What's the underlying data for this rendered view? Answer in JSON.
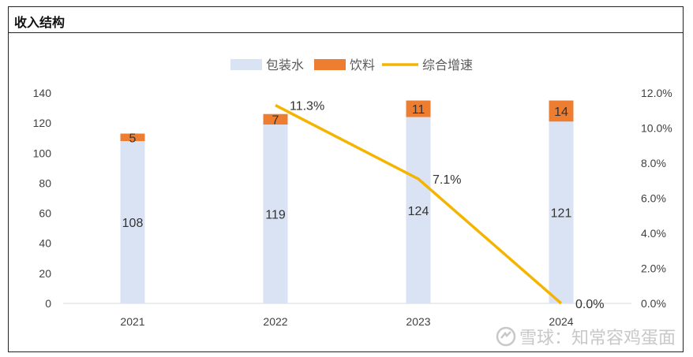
{
  "panel": {
    "title": "收入结构"
  },
  "watermark": {
    "text": "雪球：知常容鸡蛋面"
  },
  "colors": {
    "water": "#dae3f3",
    "drink": "#ed7d31",
    "growth": "#f4b400",
    "axis": "#d9d9d9",
    "tick": "#404040"
  },
  "chart_data": {
    "type": "bar",
    "stacked": true,
    "categories": [
      "2021",
      "2022",
      "2023",
      "2024"
    ],
    "series": [
      {
        "name": "包装水",
        "values": [
          108,
          119,
          124,
          121
        ],
        "labels": [
          "108",
          "119",
          "124",
          "121"
        ]
      },
      {
        "name": "饮料",
        "values": [
          5,
          7,
          11,
          14
        ],
        "labels": [
          "5",
          "7",
          "11",
          "14"
        ]
      }
    ],
    "line_series": {
      "name": "综合增速",
      "axis": "right",
      "categories": [
        "2022",
        "2023",
        "2024"
      ],
      "values": [
        0.113,
        0.071,
        0.0
      ],
      "labels": [
        "11.3%",
        "7.1%",
        "0.0%"
      ]
    },
    "y_left": {
      "ylim": [
        0,
        140
      ],
      "ticks": [
        "0",
        "20",
        "40",
        "60",
        "80",
        "100",
        "120",
        "140"
      ]
    },
    "y_right": {
      "ylim": [
        0,
        0.12
      ],
      "ticks": [
        "0.0%",
        "2.0%",
        "4.0%",
        "6.0%",
        "8.0%",
        "10.0%",
        "12.0%"
      ]
    },
    "legend": [
      "包装水",
      "饮料",
      "综合增速"
    ],
    "legend_position": "top"
  }
}
